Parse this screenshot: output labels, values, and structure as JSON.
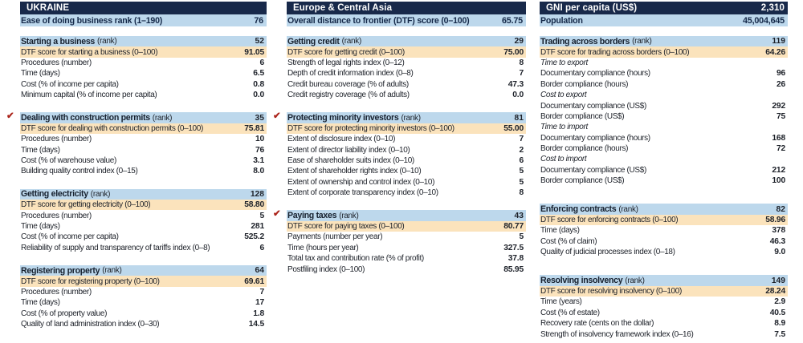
{
  "colors": {
    "navy": "#18294a",
    "light_blue": "#bdd8ec",
    "orange": "#fbe3bc",
    "check_red": "#ab241b"
  },
  "icons": {
    "reform_check": "✔"
  },
  "banner": {
    "col1": {
      "title": "UKRAINE",
      "sub_label": "Ease of doing business rank (1–190)",
      "sub_value": "76"
    },
    "col2": {
      "title": "Europe & Central Asia",
      "sub_label": "Overall distance to frontier (DTF) score (0–100)",
      "sub_value": "65.75"
    },
    "col3": {
      "title": "GNI per capita (US$)",
      "title_value": "2,310",
      "sub_label": "Population",
      "sub_value": "45,004,645"
    }
  },
  "columns": [
    {
      "sections": [
        {
          "name": "Starting a business",
          "suffix": "(rank)",
          "rank": "52",
          "checked": false,
          "rows": [
            {
              "type": "dtf",
              "label": "DTF score for starting a business (0–100)",
              "value": "91.05"
            },
            {
              "type": "item",
              "label": "Procedures (number)",
              "value": "6"
            },
            {
              "type": "item",
              "label": "Time (days)",
              "value": "6.5"
            },
            {
              "type": "item",
              "label": "Cost (% of income per capita)",
              "value": "0.8"
            },
            {
              "type": "item",
              "label": "Minimum capital (% of income per capita)",
              "value": "0.0"
            }
          ]
        },
        {
          "name": "Dealing with construction permits",
          "suffix": "(rank)",
          "rank": "35",
          "checked": true,
          "rows": [
            {
              "type": "dtf",
              "label": "DTF score for dealing with construction permits (0–100)",
              "value": "75.81"
            },
            {
              "type": "item",
              "label": "Procedures (number)",
              "value": "10"
            },
            {
              "type": "item",
              "label": "Time (days)",
              "value": "76"
            },
            {
              "type": "item",
              "label": "Cost (% of warehouse value)",
              "value": "3.1"
            },
            {
              "type": "item",
              "label": "Building quality control index (0–15)",
              "value": "8.0"
            }
          ]
        },
        {
          "name": "Getting electricity",
          "suffix": "(rank)",
          "rank": "128",
          "checked": false,
          "rows": [
            {
              "type": "dtf",
              "label": "DTF score for getting electricity (0–100)",
              "value": "58.80"
            },
            {
              "type": "item",
              "label": "Procedures (number)",
              "value": "5"
            },
            {
              "type": "item",
              "label": "Time (days)",
              "value": "281"
            },
            {
              "type": "item",
              "label": "Cost (% of income per capita)",
              "value": "525.2"
            },
            {
              "type": "item",
              "label": "Reliability of supply and transparency of tariffs index (0–8)",
              "value": "6"
            }
          ]
        },
        {
          "name": "Registering property",
          "suffix": "(rank)",
          "rank": "64",
          "checked": false,
          "rows": [
            {
              "type": "dtf",
              "label": "DTF score for registering property (0–100)",
              "value": "69.61"
            },
            {
              "type": "item",
              "label": "Procedures (number)",
              "value": "7"
            },
            {
              "type": "item",
              "label": "Time (days)",
              "value": "17"
            },
            {
              "type": "item",
              "label": "Cost (% of property value)",
              "value": "1.8"
            },
            {
              "type": "item",
              "label": "Quality of land administration index (0–30)",
              "value": "14.5"
            }
          ]
        }
      ]
    },
    {
      "sections": [
        {
          "name": "Getting credit",
          "suffix": "(rank)",
          "rank": "29",
          "checked": false,
          "rows": [
            {
              "type": "dtf",
              "label": "DTF score for getting credit (0–100)",
              "value": "75.00"
            },
            {
              "type": "item",
              "label": "Strength of legal rights index (0–12)",
              "value": "8"
            },
            {
              "type": "item",
              "label": "Depth of credit information index (0–8)",
              "value": "7"
            },
            {
              "type": "item",
              "label": "Credit bureau coverage (% of adults)",
              "value": "47.3"
            },
            {
              "type": "item",
              "label": "Credit registry coverage (% of adults)",
              "value": "0.0"
            }
          ]
        },
        {
          "name": "Protecting minority investors",
          "suffix": "(rank)",
          "rank": "81",
          "checked": true,
          "rows": [
            {
              "type": "dtf",
              "label": "DTF score for protecting minority investors (0–100)",
              "value": "55.00"
            },
            {
              "type": "item",
              "label": "Extent of disclosure index (0–10)",
              "value": "7"
            },
            {
              "type": "item",
              "label": "Extent of director liability index (0–10)",
              "value": "2"
            },
            {
              "type": "item",
              "label": "Ease of shareholder suits index (0–10)",
              "value": "6"
            },
            {
              "type": "item",
              "label": "Extent of shareholder rights index (0–10)",
              "value": "5"
            },
            {
              "type": "item",
              "label": "Extent of ownership and control index (0–10)",
              "value": "5"
            },
            {
              "type": "item",
              "label": "Extent of corporate transparency index (0–10)",
              "value": "8"
            }
          ]
        },
        {
          "name": "Paying taxes",
          "suffix": "(rank)",
          "rank": "43",
          "checked": true,
          "rows": [
            {
              "type": "dtf",
              "label": "DTF score for paying taxes (0–100)",
              "value": "80.77"
            },
            {
              "type": "item",
              "label": "Payments (number per year)",
              "value": "5"
            },
            {
              "type": "item",
              "label": "Time (hours per year)",
              "value": "327.5"
            },
            {
              "type": "item",
              "label": "Total tax and contribution rate (% of profit)",
              "value": "37.8"
            },
            {
              "type": "item",
              "label": "Postfiling index (0–100)",
              "value": "85.95"
            }
          ]
        }
      ]
    },
    {
      "sections": [
        {
          "name": "Trading across borders",
          "suffix": "(rank)",
          "rank": "119",
          "checked": false,
          "rows": [
            {
              "type": "dtf",
              "label": "DTF score for trading across borders (0–100)",
              "value": "64.26"
            },
            {
              "type": "subhead",
              "label": "Time to export",
              "value": ""
            },
            {
              "type": "item",
              "label": "Documentary compliance (hours)",
              "value": "96"
            },
            {
              "type": "item",
              "label": "Border compliance (hours)",
              "value": "26"
            },
            {
              "type": "subhead",
              "label": "Cost to export",
              "value": ""
            },
            {
              "type": "item",
              "label": "Documentary compliance (US$)",
              "value": "292"
            },
            {
              "type": "item",
              "label": "Border compliance (US$)",
              "value": "75"
            },
            {
              "type": "subhead",
              "label": "Time to import",
              "value": ""
            },
            {
              "type": "item",
              "label": "Documentary compliance (hours)",
              "value": "168"
            },
            {
              "type": "item",
              "label": "Border compliance (hours)",
              "value": "72"
            },
            {
              "type": "subhead",
              "label": "Cost to import",
              "value": ""
            },
            {
              "type": "item",
              "label": "Documentary compliance (US$)",
              "value": "212"
            },
            {
              "type": "item",
              "label": "Border compliance (US$)",
              "value": "100"
            }
          ]
        },
        {
          "name": "Enforcing contracts",
          "suffix": "(rank)",
          "rank": "82",
          "checked": false,
          "rows": [
            {
              "type": "dtf",
              "label": "DTF score for enforcing contracts (0–100)",
              "value": "58.96"
            },
            {
              "type": "item",
              "label": "Time (days)",
              "value": "378"
            },
            {
              "type": "item",
              "label": "Cost (% of claim)",
              "value": "46.3"
            },
            {
              "type": "item",
              "label": "Quality of judicial processes index (0–18)",
              "value": "9.0"
            }
          ]
        },
        {
          "name": "Resolving insolvency",
          "suffix": "(rank)",
          "rank": "149",
          "checked": false,
          "rows": [
            {
              "type": "dtf",
              "label": "DTF score for resolving insolvency (0–100)",
              "value": "28.24"
            },
            {
              "type": "item",
              "label": "Time (years)",
              "value": "2.9"
            },
            {
              "type": "item",
              "label": "Cost (% of estate)",
              "value": "40.5"
            },
            {
              "type": "item",
              "label": "Recovery rate (cents on the dollar)",
              "value": "8.9"
            },
            {
              "type": "item",
              "label": "Strength of insolvency framework index (0–16)",
              "value": "7.5"
            }
          ]
        }
      ]
    }
  ]
}
